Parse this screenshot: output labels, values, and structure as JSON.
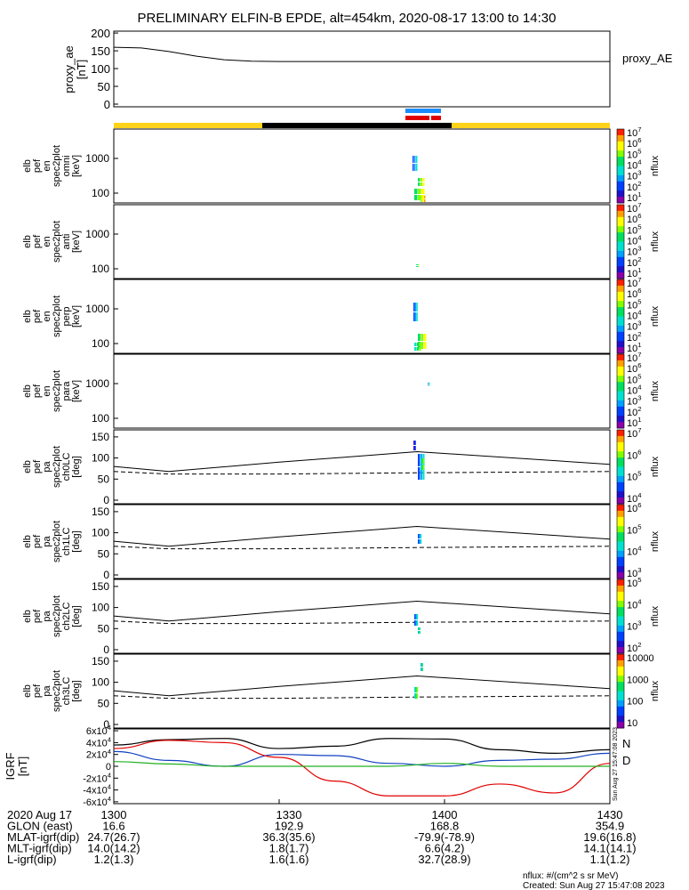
{
  "title": "PRELIMINARY ELFIN-B EPDE, alt=454km, 2020-08-17 13:00 to 14:30",
  "colors": {
    "state_bar_day": "#ffd21a",
    "state_bar_night": "#000000",
    "north_marker": "#1a8cff",
    "south_marker": "#e00000",
    "grf_n": "#1040c0",
    "grf_d": "#e00000",
    "grf_total": "#000000",
    "grf_green": "#20b020"
  },
  "time_axis": {
    "start": "13:00",
    "end": "14:30",
    "ticks": [
      "1300",
      "1330",
      "1400",
      "1430"
    ]
  },
  "ephemeris": {
    "rows": [
      {
        "label": "2020 Aug 17",
        "values": [
          "1300",
          "1330",
          "1400",
          "1430"
        ]
      },
      {
        "label": "GLON (east)",
        "values": [
          "16.6",
          "192.9",
          "168.8",
          "354.9"
        ]
      },
      {
        "label": "MLAT-igrf(dip)",
        "values": [
          "24.7(26.7)",
          "36.3(35.6)",
          "-79.9(-78.9)",
          "19.6(16.8)"
        ]
      },
      {
        "label": "MLT-igrf(dip)",
        "values": [
          "14.0(14.2)",
          "1.8(1.7)",
          "6.6(4.2)",
          "14.1(14.1)"
        ]
      },
      {
        "label": "L-igrf(dip)",
        "values": [
          "1.2(1.3)",
          "1.6(1.6)",
          "32.7(28.9)",
          "1.1(1.2)"
        ]
      }
    ]
  },
  "footer": {
    "units": "nflux: #/(cm^2 s sr MeV)",
    "created": "Created: Sun Aug 27 15:47:08 2023",
    "side_stamp": "Sun Aug 27 15:47:08 2023"
  },
  "panels": [
    {
      "id": "proxy_ae",
      "ylabel": [
        "proxy_ae",
        "[nT]"
      ],
      "legend": "proxy_AE"
    },
    {
      "id": "omni",
      "ylabel": [
        "elb",
        "pef",
        "en",
        "spec2plot",
        "omni",
        "[keV]"
      ],
      "colorbar_label": "nflux",
      "colorbar_ticks": [
        "10^7",
        "10^6",
        "10^5",
        "10^4",
        "10^3",
        "10^2",
        "10^1"
      ]
    },
    {
      "id": "anti",
      "ylabel": [
        "elb",
        "pef",
        "en",
        "spec2plot",
        "anti",
        "[keV]"
      ],
      "colorbar_label": "nflux",
      "colorbar_ticks": [
        "10^7",
        "10^6",
        "10^5",
        "10^4",
        "10^3",
        "10^2",
        "10^1"
      ]
    },
    {
      "id": "perp",
      "ylabel": [
        "elb",
        "pef",
        "en",
        "spec2plot",
        "perp",
        "[keV]"
      ],
      "colorbar_label": "nflux",
      "colorbar_ticks": [
        "10^7",
        "10^6",
        "10^5",
        "10^4",
        "10^3",
        "10^2",
        "10^1"
      ]
    },
    {
      "id": "para",
      "ylabel": [
        "elb",
        "pef",
        "en",
        "spec2plot",
        "para",
        "[keV]"
      ],
      "colorbar_label": "nflux",
      "colorbar_ticks": [
        "10^7",
        "10^6",
        "10^5",
        "10^4",
        "10^3",
        "10^2",
        "10^1"
      ]
    },
    {
      "id": "ch0LC",
      "ylabel": [
        "elb",
        "pef",
        "pa",
        "spec2plot",
        "ch0LC",
        "[deg]"
      ],
      "colorbar_label": "nflux",
      "colorbar_ticks": [
        "10^7",
        "10^6",
        "10^5",
        "10^4"
      ]
    },
    {
      "id": "ch1LC",
      "ylabel": [
        "elb",
        "pef",
        "pa",
        "spec2plot",
        "ch1LC",
        "[deg]"
      ],
      "colorbar_label": "nflux",
      "colorbar_ticks": [
        "10^6",
        "10^5",
        "10^4",
        "10^3"
      ]
    },
    {
      "id": "ch2LC",
      "ylabel": [
        "elb",
        "pef",
        "pa",
        "spec2plot",
        "ch2LC",
        "[deg]"
      ],
      "colorbar_label": "nflux",
      "colorbar_ticks": [
        "10^5",
        "10^4",
        "10^3",
        "10^2"
      ]
    },
    {
      "id": "ch3LC",
      "ylabel": [
        "elb",
        "pef",
        "pa",
        "spec2plot",
        "ch3LC",
        "[deg]"
      ],
      "colorbar_label": "nflux",
      "colorbar_ticks": [
        "10000",
        "1000",
        "100",
        "10"
      ]
    },
    {
      "id": "igrf",
      "ylabel": [
        "IGRF",
        "[nT]"
      ],
      "legend_n": "N",
      "legend_d": "D"
    }
  ],
  "chart_data": [
    {
      "type": "line",
      "panel": "proxy_ae",
      "ylim": [
        0,
        200
      ],
      "yticks": [
        "0",
        "50",
        "100",
        "150",
        "200"
      ],
      "x": [
        "13:00",
        "13:05",
        "13:10",
        "13:15",
        "13:20",
        "13:25",
        "13:30",
        "14:30"
      ],
      "series": [
        {
          "name": "proxy_AE",
          "values": [
            160,
            158,
            148,
            135,
            125,
            121,
            120,
            120
          ]
        }
      ]
    },
    {
      "type": "heatmap",
      "panel": "energy spectrograms (omni, anti, perp, para)",
      "yscale": "log",
      "yticks": [
        "100",
        "1000"
      ],
      "active_interval": [
        "13:55",
        "14:00"
      ],
      "note_values": {
        "omni_peak_keV": 1000,
        "perp_peak_keV": 1000
      }
    },
    {
      "type": "heatmap",
      "panel": "pitch-angle spectrograms (ch0LC..ch3LC)",
      "ylim": [
        0,
        180
      ],
      "yticks": [
        "0",
        "50",
        "100",
        "150"
      ],
      "loss_cone_solid": {
        "x": [
          "13:00",
          "13:10",
          "13:30",
          "13:55",
          "14:30"
        ],
        "values": [
          80,
          68,
          90,
          115,
          85
        ]
      },
      "loss_cone_dashed": {
        "x": [
          "13:00",
          "13:10",
          "13:30",
          "13:55",
          "14:30"
        ],
        "values": [
          68,
          62,
          62,
          65,
          68
        ]
      }
    },
    {
      "type": "line",
      "panel": "igrf",
      "ylim": [
        -60000,
        60000
      ],
      "yticks": [
        "6x10^4",
        "4x10^4",
        "2x10^4",
        "0",
        "-2x10^4",
        "-4x10^4",
        "-6x10^4"
      ],
      "x": [
        "13:00",
        "13:10",
        "13:20",
        "13:30",
        "13:40",
        "13:50",
        "14:00",
        "14:10",
        "14:20",
        "14:30"
      ],
      "series": [
        {
          "name": "total",
          "values": [
            36000,
            45000,
            47000,
            30000,
            34000,
            47000,
            46000,
            28000,
            22000,
            28000
          ]
        },
        {
          "name": "N",
          "values": [
            25000,
            10000,
            0,
            20000,
            18000,
            5000,
            0,
            10000,
            12000,
            22000
          ]
        },
        {
          "name": "D",
          "values": [
            30000,
            44000,
            40000,
            15000,
            -25000,
            -50000,
            -50000,
            -30000,
            -45000,
            5000
          ]
        },
        {
          "name": "green",
          "values": [
            8000,
            4000,
            0,
            0,
            0,
            0,
            5000,
            0,
            0,
            0
          ]
        }
      ]
    }
  ]
}
